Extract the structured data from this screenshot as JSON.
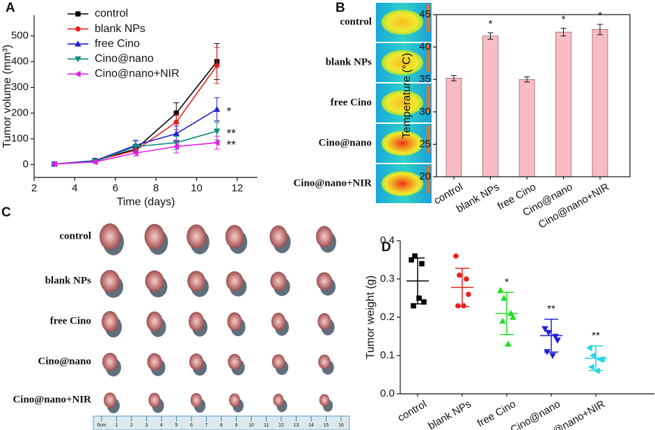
{
  "panel_labels": [
    "A",
    "B",
    "C",
    "D"
  ],
  "images": {
    "thermal_labels": [
      "control",
      "blank NPs",
      "free Cino",
      "Cino@nano",
      "Cino@nano+NIR"
    ],
    "tumor_labels": [
      "control",
      "blank NPs",
      "free Cino",
      "Cino@nano",
      "Cino@nano+NIR"
    ],
    "ruler_labels": [
      "0cm",
      "1",
      "2",
      "3",
      "4",
      "5",
      "6",
      "7",
      "8",
      "9",
      "10",
      "11",
      "12",
      "13",
      "14",
      "15",
      "16"
    ]
  },
  "chart_data": [
    {
      "type": "line",
      "x_label": "Time (days)",
      "y_label": "Tumor volume (mm³)",
      "x": [
        3,
        5,
        7,
        9,
        11
      ],
      "xlim": [
        2,
        13
      ],
      "xticks": [
        2,
        4,
        6,
        8,
        10,
        12
      ],
      "ylim": [
        -50,
        580
      ],
      "yticks": [
        0,
        100,
        200,
        300,
        400,
        500
      ],
      "legend": "upper left",
      "series": [
        {
          "name": "control",
          "color": "#000000",
          "marker": "square",
          "values": [
            2,
            15,
            60,
            200,
            400
          ],
          "errors": [
            2,
            4,
            15,
            40,
            70
          ]
        },
        {
          "name": "blank NPs",
          "color": "#e8211c",
          "marker": "circle",
          "values": [
            2,
            15,
            55,
            165,
            385
          ],
          "errors": [
            2,
            4,
            12,
            30,
            70
          ]
        },
        {
          "name": "free Cino",
          "color": "#1f1fd6",
          "marker": "triangle-up",
          "values": [
            2,
            15,
            75,
            120,
            215
          ],
          "errors": [
            2,
            4,
            20,
            30,
            45
          ]
        },
        {
          "name": "Cino@nano",
          "color": "#0f8a7a",
          "marker": "triangle-down",
          "values": [
            2,
            12,
            70,
            85,
            130
          ],
          "errors": [
            2,
            3,
            20,
            25,
            35
          ]
        },
        {
          "name": "Cino@nano+NIR",
          "color": "#e61ee6",
          "marker": "triangle-left",
          "values": [
            2,
            10,
            45,
            70,
            85
          ],
          "errors": [
            2,
            3,
            12,
            25,
            25
          ]
        }
      ],
      "annotations": [
        {
          "text": "*",
          "series": 2
        },
        {
          "text": "**",
          "series": 3
        },
        {
          "text": "**",
          "series": 4
        }
      ]
    },
    {
      "type": "bar",
      "y_label": "Temperature (°C)",
      "categories": [
        "control",
        "blank NPs",
        "free Cino",
        "Cino@nano",
        "Cino@nano+NIR"
      ],
      "values": [
        35.2,
        41.7,
        35.0,
        42.3,
        42.7
      ],
      "errors": [
        0.4,
        0.5,
        0.4,
        0.6,
        0.8
      ],
      "color": "#f7bcc4",
      "edge_color": "#a06068",
      "ylim": [
        20,
        45
      ],
      "yticks": [
        20,
        25,
        30,
        35,
        40,
        45
      ],
      "annotations": [
        {
          "text": "*",
          "category": 1
        },
        {
          "text": "*",
          "category": 3
        },
        {
          "text": "*",
          "category": 4
        }
      ]
    },
    {
      "type": "scatter",
      "y_label": "Tumor weight (g)",
      "categories": [
        "control",
        "blank NPs",
        "free Cino",
        "Cino@nano",
        "Cino@nano+NIR"
      ],
      "colors": [
        "#000000",
        "#e8211c",
        "#22dd22",
        "#1f1fd6",
        "#22d3e0"
      ],
      "markers": [
        "square",
        "circle",
        "triangle-up",
        "triangle-down",
        "triangle-left"
      ],
      "points": [
        [
          0.35,
          0.36,
          0.34,
          0.24,
          0.23,
          0.25
        ],
        [
          0.36,
          0.31,
          0.3,
          0.26,
          0.23,
          0.23
        ],
        [
          0.27,
          0.25,
          0.21,
          0.2,
          0.19,
          0.13
        ],
        [
          0.17,
          0.16,
          0.15,
          0.14,
          0.11,
          0.1
        ],
        [
          0.12,
          0.1,
          0.09,
          0.09,
          0.07,
          0.06
        ]
      ],
      "means": [
        0.295,
        0.278,
        0.21,
        0.152,
        0.093
      ],
      "sds": [
        0.06,
        0.05,
        0.055,
        0.043,
        0.032
      ],
      "ylim": [
        0,
        0.4
      ],
      "yticks": [
        {
          "value": 0,
          "label": "0.0"
        },
        0.1,
        0.2,
        0.3,
        0.4
      ],
      "annotations": [
        {
          "text": "*",
          "category": 2
        },
        {
          "text": "**",
          "category": 3
        },
        {
          "text": "**",
          "category": 4
        }
      ]
    }
  ]
}
